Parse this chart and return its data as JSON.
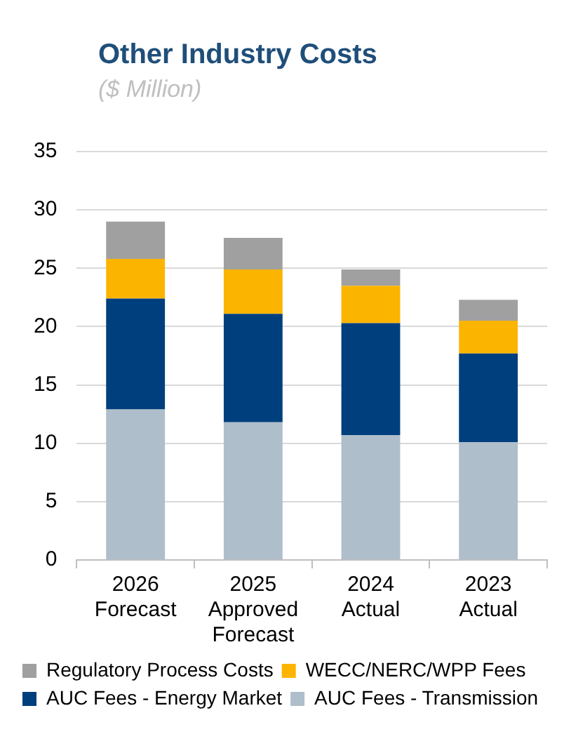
{
  "chart_data": {
    "type": "bar",
    "title": "Other Industry Costs",
    "subtitle": "($ Million)",
    "stacked": true,
    "categories": [
      "2026 Forecast",
      "2025 Approved Forecast",
      "2024 Actual",
      "2023 Actual"
    ],
    "series": [
      {
        "name": "AUC Fees - Transmission",
        "color": "#afbecb",
        "values": [
          12.9,
          11.8,
          10.7,
          10.1
        ]
      },
      {
        "name": "AUC Fees - Energy Market",
        "color": "#003f7d",
        "values": [
          9.5,
          9.3,
          9.6,
          7.6
        ]
      },
      {
        "name": "WECC/NERC/WPP Fees",
        "color": "#fbb400",
        "values": [
          3.4,
          3.8,
          3.2,
          2.8
        ]
      },
      {
        "name": "Regulatory Process Costs",
        "color": "#a0a0a0",
        "values": [
          3.2,
          2.7,
          1.4,
          1.8
        ]
      }
    ],
    "ylim": [
      0,
      35
    ],
    "yticks": [
      0,
      5,
      10,
      15,
      20,
      25,
      30,
      35
    ],
    "grid": "y",
    "legend": "bottom"
  }
}
